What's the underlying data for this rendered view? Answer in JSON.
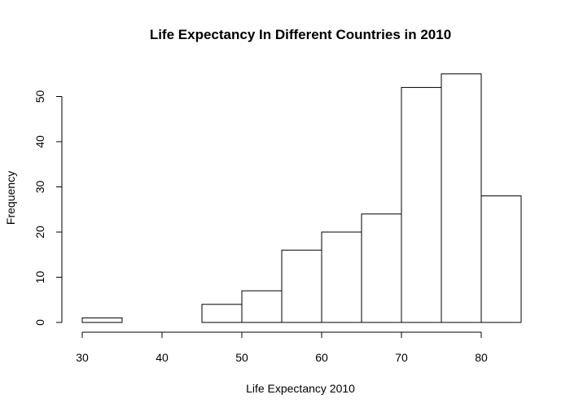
{
  "chart_data": {
    "type": "bar",
    "title": "Life Expectancy In Different Countries in 2010",
    "xlabel": "Life Expectancy 2010",
    "ylabel": "Frequency",
    "bin_edges": [
      30,
      35,
      40,
      45,
      50,
      55,
      60,
      65,
      70,
      75,
      80,
      85
    ],
    "values": [
      1,
      0,
      0,
      4,
      7,
      16,
      20,
      24,
      52,
      55,
      28
    ],
    "xlim": [
      30,
      85
    ],
    "ylim": [
      0,
      55
    ],
    "x_ticks": [
      30,
      40,
      50,
      60,
      70,
      80
    ],
    "y_ticks": [
      0,
      10,
      20,
      30,
      40,
      50
    ],
    "grid": false
  }
}
